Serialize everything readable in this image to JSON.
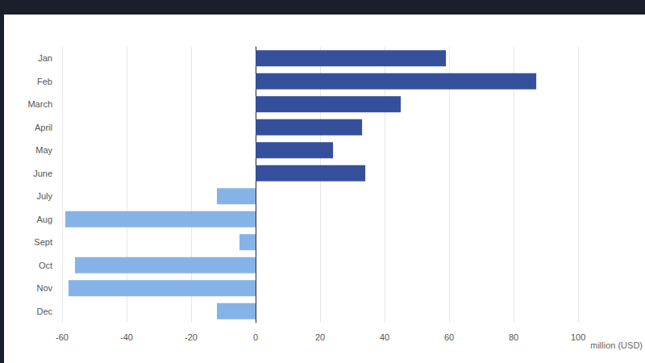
{
  "chart_data": {
    "type": "bar",
    "orientation": "horizontal",
    "x_label": "million (USD)",
    "categories": [
      "Jan",
      "Feb",
      "March",
      "April",
      "May",
      "June",
      "July",
      "Aug",
      "Sept",
      "Oct",
      "Nov",
      "Dec"
    ],
    "values": [
      59,
      87,
      45,
      33,
      24,
      34,
      -12,
      -59,
      -5,
      -56,
      -58,
      -12
    ],
    "colors": [
      "#35509b",
      "#35509b",
      "#35509b",
      "#35509b",
      "#35509b",
      "#35509b",
      "#86b3e7",
      "#86b3e7",
      "#86b3e7",
      "#86b3e7",
      "#86b3e7",
      "#86b3e7"
    ],
    "xlim": [
      -60,
      100
    ],
    "xticks": [
      -60,
      -40,
      -20,
      0,
      20,
      40,
      60,
      80,
      100
    ],
    "grid": true
  }
}
